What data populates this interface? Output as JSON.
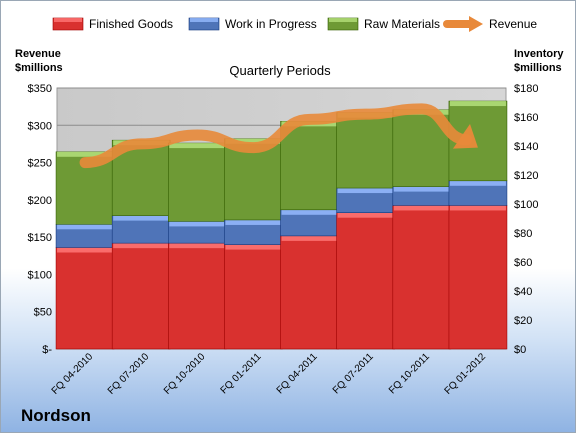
{
  "chart_data": {
    "type": "bar",
    "stacked": true,
    "title": "Quarterly Periods",
    "company": "Nordson",
    "categories": [
      "FQ 04-2010",
      "FQ 07-2010",
      "FQ 10-2010",
      "FQ 01-2011",
      "FQ 04-2011",
      "FQ 07-2011",
      "FQ 10-2011",
      "FQ 01-2012"
    ],
    "left_axis": {
      "label_line1": "Revenue",
      "label_line2": "$millions",
      "range": [
        0,
        350
      ],
      "ticks": [
        0,
        50,
        100,
        150,
        200,
        250,
        300,
        350
      ],
      "tick_labels": [
        "$-",
        "$50",
        "$100",
        "$150",
        "$200",
        "$250",
        "$300",
        "$350"
      ]
    },
    "right_axis": {
      "label_line1": "Inventory",
      "label_line2": "$millions",
      "range": [
        0,
        180
      ],
      "ticks": [
        0,
        20,
        40,
        60,
        80,
        100,
        120,
        140,
        160,
        180
      ],
      "tick_labels": [
        "$0",
        "$20",
        "$40",
        "$60",
        "$80",
        "$100",
        "$120",
        "$140",
        "$160",
        "$180"
      ]
    },
    "series": [
      {
        "name": "Finished Goods",
        "axis": "right",
        "color": "#d9312f",
        "values": [
          70,
          73,
          73,
          72,
          78,
          94,
          99,
          99
        ]
      },
      {
        "name": "Work in Progress",
        "axis": "right",
        "color": "#4f74b8",
        "values": [
          16,
          19,
          15,
          17,
          18,
          17,
          13,
          17
        ]
      },
      {
        "name": "Raw Materials",
        "axis": "right",
        "color": "#6e9a35",
        "values": [
          50,
          52,
          54,
          56,
          61,
          52,
          53,
          55
        ]
      },
      {
        "name": "Revenue",
        "axis": "left",
        "type": "line",
        "color": "#e8893a",
        "values": [
          250,
          275,
          287,
          270,
          308,
          315,
          322,
          270
        ]
      }
    ],
    "grid": true,
    "legend": "top"
  }
}
